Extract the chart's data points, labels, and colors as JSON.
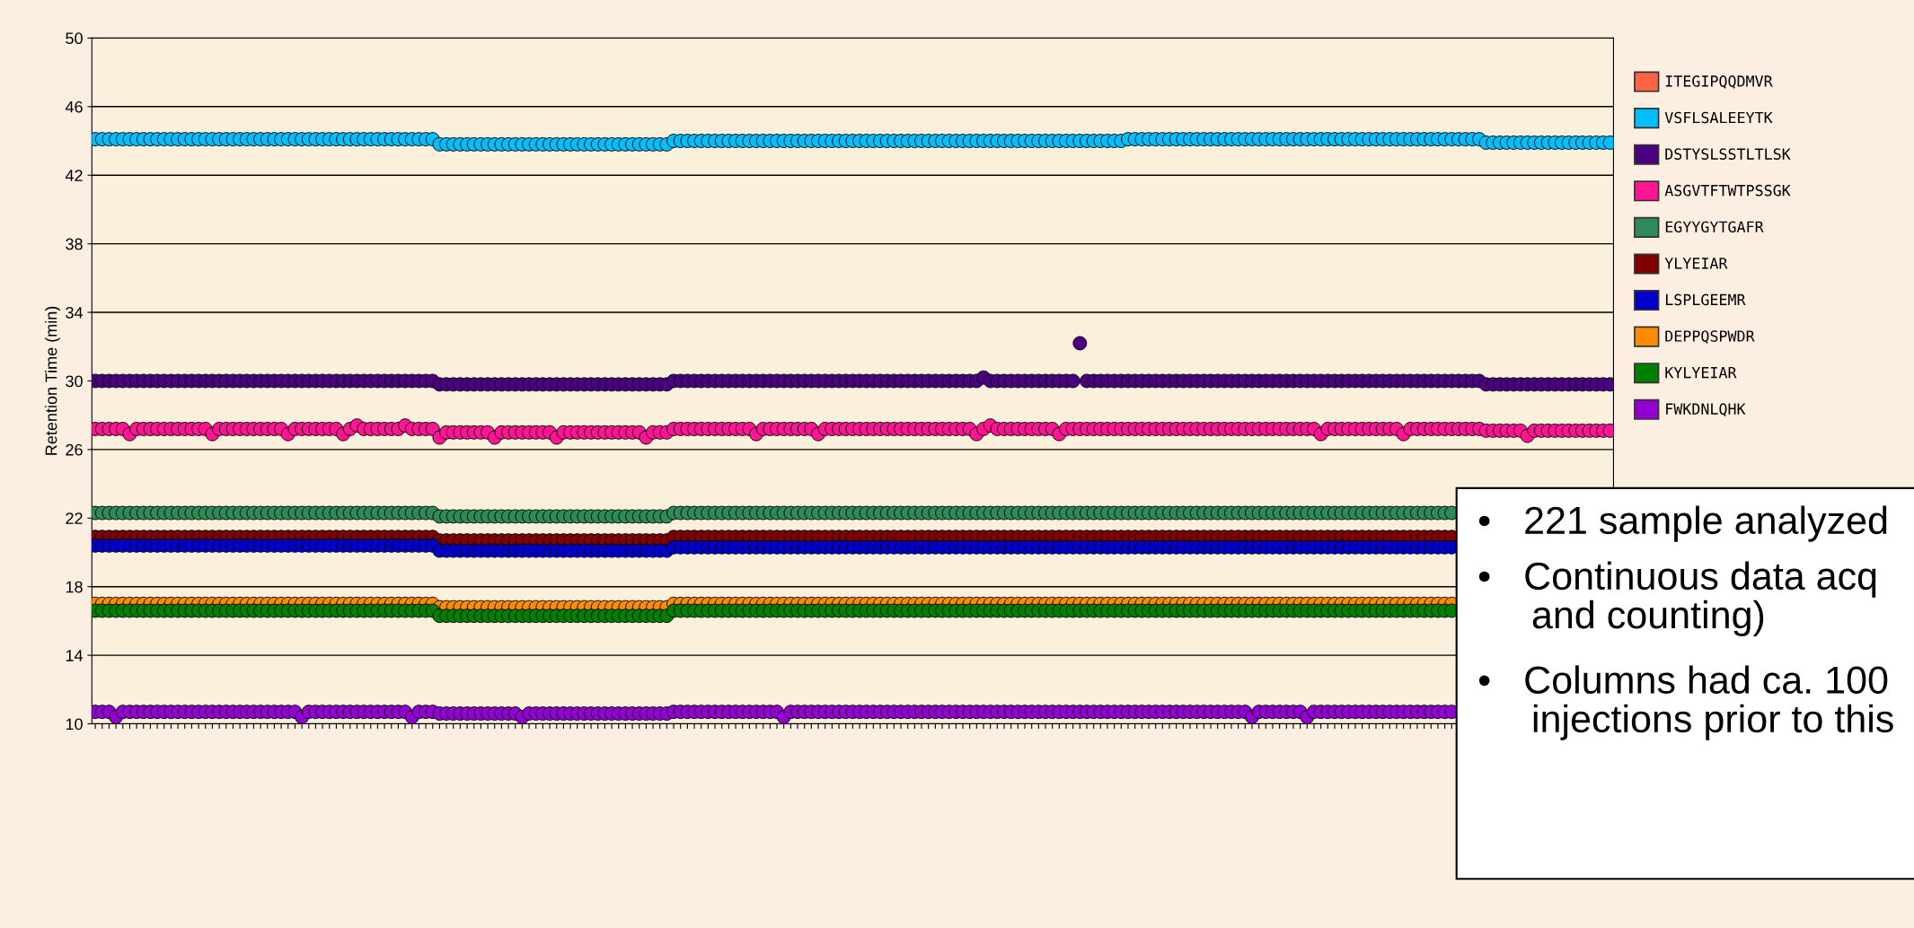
{
  "chart_data": {
    "type": "scatter",
    "ylabel": "Retention Time (min)",
    "ylim": [
      10,
      50
    ],
    "yticks": [
      10,
      14,
      18,
      22,
      26,
      30,
      34,
      38,
      42,
      46,
      50
    ],
    "grid": "y",
    "legend": "right",
    "marker": "circle",
    "categories": [
      null,
      null,
      null,
      null,
      null,
      null,
      null,
      null,
      null,
      null,
      null,
      null,
      null,
      null,
      null,
      null,
      null,
      null,
      null,
      null,
      null,
      null,
      null,
      null,
      null,
      null,
      null,
      null,
      null,
      null,
      null,
      null,
      null,
      null,
      null,
      null,
      null,
      null,
      null,
      null,
      null,
      null,
      null,
      null,
      null,
      null,
      null,
      null,
      null,
      null,
      null,
      null,
      null,
      null,
      null,
      null,
      null,
      null,
      null,
      null,
      null,
      null,
      null,
      null,
      null,
      null,
      null,
      null,
      null,
      null,
      null,
      null,
      null,
      null,
      null,
      null,
      null,
      null,
      null,
      null,
      null,
      null,
      null,
      null,
      null,
      null,
      null,
      null,
      null,
      null,
      null,
      null,
      null,
      null,
      null,
      null,
      null,
      null,
      null,
      null,
      null,
      null,
      null,
      null,
      null,
      null,
      null,
      null,
      null,
      null,
      null,
      null,
      null,
      null,
      null,
      null,
      null,
      null,
      null,
      null,
      null,
      null,
      null,
      null,
      null,
      null,
      null,
      null,
      null,
      null,
      null,
      null,
      null,
      null,
      null,
      null,
      null,
      null,
      null,
      null,
      null,
      null,
      null,
      null,
      null,
      null,
      null,
      null,
      null,
      null,
      null,
      null,
      null,
      null,
      null,
      null,
      null,
      null,
      null,
      null,
      null,
      null,
      null,
      null,
      null,
      null,
      null,
      null,
      null,
      null,
      null,
      null,
      null,
      null,
      null,
      null,
      null,
      null,
      null,
      null,
      null,
      null,
      null,
      null,
      null,
      null,
      null,
      null,
      null,
      null,
      null,
      null,
      null,
      null,
      null,
      null,
      null,
      null,
      null,
      null,
      null,
      null,
      null,
      null,
      null,
      null,
      null,
      null,
      null,
      null,
      null,
      null,
      null,
      null,
      null,
      null,
      null,
      null,
      null,
      null,
      null
    ],
    "series": [
      {
        "name": "ITEGIPQQDMVR",
        "color": "#ff6347",
        "values": [
          null,
          null,
          null,
          null,
          null,
          null,
          null,
          null,
          null,
          null,
          null,
          null,
          null,
          null,
          null,
          null,
          null,
          null,
          null,
          null,
          null,
          null,
          null,
          null,
          null,
          null,
          null,
          null,
          null,
          null,
          null,
          null,
          null,
          null,
          null,
          null,
          null,
          null,
          null,
          null,
          null,
          null,
          null,
          null,
          null,
          null,
          null,
          null,
          null,
          null,
          null,
          null,
          null,
          null,
          null,
          null,
          null,
          null,
          null,
          null,
          null,
          null,
          null,
          null,
          null,
          null,
          null,
          null,
          null,
          null,
          null,
          null,
          null,
          null,
          null,
          null,
          null,
          null,
          null,
          null,
          null,
          null,
          null,
          null,
          null,
          null,
          null,
          null,
          null,
          null,
          null,
          null,
          null,
          null,
          null,
          null,
          null,
          null,
          null,
          null,
          null,
          null,
          null,
          null,
          null,
          null,
          null,
          null,
          null,
          null,
          null,
          null,
          null,
          null,
          null,
          null,
          null,
          null,
          null,
          null,
          null,
          null,
          null,
          null,
          null,
          null,
          null,
          null,
          null,
          null,
          null,
          null,
          null,
          null,
          null,
          null,
          null,
          null,
          null,
          null,
          null,
          null,
          null,
          null,
          null,
          null,
          null,
          null,
          null,
          null,
          null,
          null,
          null,
          null,
          null,
          null,
          null,
          null,
          null,
          null,
          null,
          null,
          null,
          null,
          null,
          null,
          null,
          null,
          null,
          null,
          null,
          null,
          null,
          null,
          null,
          null,
          null,
          null,
          null,
          null,
          null,
          null,
          null,
          null,
          null,
          null,
          null,
          null,
          null,
          null,
          null,
          null,
          null,
          null,
          null,
          null,
          null,
          null,
          null,
          null,
          null,
          null,
          null,
          null,
          null,
          null,
          null,
          null,
          null,
          null,
          null,
          null,
          null,
          null,
          null,
          null,
          null,
          null,
          null,
          null,
          null
        ]
      },
      {
        "name": "VSFLSALEEYTK",
        "color": "#00bfff",
        "values": [
          44.1,
          44.1,
          44.1,
          44.1,
          44.1,
          44.1,
          44.1,
          44.1,
          44.1,
          44.1,
          44.1,
          44.1,
          44.1,
          44.1,
          44.1,
          44.1,
          44.1,
          44.1,
          44.1,
          44.1,
          44.1,
          44.1,
          44.1,
          44.1,
          44.1,
          44.1,
          44.1,
          44.1,
          44.1,
          44.1,
          44.1,
          44.1,
          44.1,
          44.1,
          44.1,
          44.1,
          44.1,
          44.1,
          44.1,
          44.1,
          44.1,
          44.1,
          44.1,
          44.1,
          44.1,
          44.1,
          44.1,
          44.1,
          44.1,
          44.1,
          43.8,
          43.8,
          43.8,
          43.8,
          43.8,
          43.8,
          43.8,
          43.8,
          43.8,
          43.8,
          43.8,
          43.8,
          43.8,
          43.8,
          43.8,
          43.8,
          43.8,
          43.8,
          43.8,
          43.8,
          43.8,
          43.8,
          43.8,
          43.8,
          43.8,
          43.8,
          43.8,
          43.8,
          43.8,
          43.8,
          43.8,
          43.8,
          43.8,
          43.8,
          44,
          44,
          44,
          44,
          44,
          44,
          44,
          44,
          44,
          44,
          44,
          44,
          44,
          44,
          44,
          44,
          44,
          44,
          44,
          44,
          44,
          44,
          44,
          44,
          44,
          44,
          44,
          44,
          44,
          44,
          44,
          44,
          44,
          44,
          44,
          44,
          44,
          44,
          44,
          44,
          44,
          44,
          44,
          44,
          44,
          44,
          44,
          44,
          44,
          44,
          44,
          44,
          44,
          44,
          44,
          44,
          44,
          44,
          44,
          44,
          44,
          44,
          44,
          44,
          44,
          44,
          44.1,
          44.1,
          44.1,
          44.1,
          44.1,
          44.1,
          44.1,
          44.1,
          44.1,
          44.1,
          44.1,
          44.1,
          44.1,
          44.1,
          44.1,
          44.1,
          44.1,
          44.1,
          44.1,
          44.1,
          44.1,
          44.1,
          44.1,
          44.1,
          44.1,
          44.1,
          44.1,
          44.1,
          44.1,
          44.1,
          44.1,
          44.1,
          44.1,
          44.1,
          44.1,
          44.1,
          44.1,
          44.1,
          44.1,
          44.1,
          44.1,
          44.1,
          44.1,
          44.1,
          44.1,
          44.1,
          44.1,
          44.1,
          44.1,
          44.1,
          44.1,
          44.1,
          43.9,
          43.9,
          43.9,
          43.9,
          43.9,
          43.9,
          43.9,
          43.9,
          43.9,
          43.9,
          43.9,
          43.9,
          43.9,
          43.9,
          43.9,
          43.9,
          43.9,
          43.9,
          43.9
        ]
      },
      {
        "name": "DSTYSLSSTLTLSK",
        "color": "#4b0082",
        "values": [
          30,
          30,
          30,
          30,
          30,
          30,
          30,
          30,
          30,
          30,
          30,
          30,
          30,
          30,
          30,
          30,
          30,
          30,
          30,
          30,
          30,
          30,
          30,
          30,
          30,
          30,
          30,
          30,
          30,
          30,
          30,
          30,
          30,
          30,
          30,
          30,
          30,
          30,
          30,
          30,
          30,
          30,
          30,
          30,
          30,
          30,
          30,
          30,
          30,
          30,
          29.8,
          29.8,
          29.8,
          29.8,
          29.8,
          29.8,
          29.8,
          29.8,
          29.8,
          29.8,
          29.8,
          29.8,
          29.8,
          29.8,
          29.8,
          29.8,
          29.8,
          29.8,
          29.8,
          29.8,
          29.8,
          29.8,
          29.8,
          29.8,
          29.8,
          29.8,
          29.8,
          29.8,
          29.8,
          29.8,
          29.8,
          29.8,
          29.8,
          29.8,
          30,
          30,
          30,
          30,
          30,
          30,
          30,
          30,
          30,
          30,
          30,
          30,
          30,
          30,
          30,
          30,
          30,
          30,
          30,
          30,
          30,
          30,
          30,
          30,
          30,
          30,
          30,
          30,
          30,
          30,
          30,
          30,
          30,
          30,
          30,
          30,
          30,
          30,
          30,
          30,
          30,
          30,
          30,
          30,
          30,
          30.2,
          30,
          30,
          30,
          30,
          30,
          30,
          30,
          30,
          30,
          30,
          30,
          30,
          30,
          32.2,
          30,
          30,
          30,
          30,
          30,
          30,
          30,
          30,
          30,
          30,
          30,
          30,
          30,
          30,
          30,
          30,
          30,
          30,
          30,
          30,
          30,
          30,
          30,
          30,
          30,
          30,
          30,
          30,
          30,
          30,
          30,
          30,
          30,
          30,
          30,
          30,
          30,
          30,
          30,
          30,
          30,
          30,
          30,
          30,
          30,
          30,
          30,
          30,
          30,
          30,
          30,
          30,
          30,
          30,
          30,
          30,
          30,
          30,
          29.8,
          29.8,
          29.8,
          29.8,
          29.8,
          29.8,
          29.8,
          29.8,
          29.8,
          29.8,
          29.8,
          29.8,
          29.8,
          29.8,
          29.8,
          29.8,
          29.8,
          29.8,
          29.8
        ]
      },
      {
        "name": "ASGVTFTWTPSSGK",
        "color": "#ff1493",
        "values": [
          27.2,
          27.2,
          27.2,
          27.2,
          27.2,
          26.9,
          27.2,
          27.2,
          27.2,
          27.2,
          27.2,
          27.2,
          27.2,
          27.2,
          27.2,
          27.2,
          27.2,
          26.9,
          27.2,
          27.2,
          27.2,
          27.2,
          27.2,
          27.2,
          27.2,
          27.2,
          27.2,
          27.2,
          26.9,
          27.2,
          27.2,
          27.2,
          27.2,
          27.2,
          27.2,
          27.2,
          26.9,
          27.2,
          27.4,
          27.2,
          27.2,
          27.2,
          27.2,
          27.2,
          27.2,
          27.4,
          27.2,
          27.2,
          27.2,
          27.2,
          26.7,
          27,
          27,
          27,
          27,
          27,
          27,
          27,
          26.7,
          27,
          27,
          27,
          27,
          27,
          27,
          27,
          27,
          26.7,
          27,
          27,
          27,
          27,
          27,
          27,
          27,
          27,
          27,
          27,
          27,
          27,
          26.7,
          27,
          27,
          27,
          27.2,
          27.2,
          27.2,
          27.2,
          27.2,
          27.2,
          27.2,
          27.2,
          27.2,
          27.2,
          27.2,
          27.2,
          26.9,
          27.2,
          27.2,
          27.2,
          27.2,
          27.2,
          27.2,
          27.2,
          27.2,
          26.9,
          27.2,
          27.2,
          27.2,
          27.2,
          27.2,
          27.2,
          27.2,
          27.2,
          27.2,
          27.2,
          27.2,
          27.2,
          27.2,
          27.2,
          27.2,
          27.2,
          27.2,
          27.2,
          27.2,
          27.2,
          27.2,
          27.2,
          26.9,
          27.2,
          27.4,
          27.2,
          27.2,
          27.2,
          27.2,
          27.2,
          27.2,
          27.2,
          27.2,
          27.2,
          26.9,
          27.2,
          27.2,
          27.2,
          27.2,
          27.2,
          27.2,
          27.2,
          27.2,
          27.2,
          27.2,
          27.2,
          27.2,
          27.2,
          27.2,
          27.2,
          27.2,
          27.2,
          27.2,
          27.2,
          27.2,
          27.2,
          27.2,
          27.2,
          27.2,
          27.2,
          27.2,
          27.2,
          27.2,
          27.2,
          27.2,
          27.2,
          27.2,
          27.2,
          27.2,
          27.2,
          27.2,
          27.2,
          26.9,
          27.2,
          27.2,
          27.2,
          27.2,
          27.2,
          27.2,
          27.2,
          27.2,
          27.2,
          27.2,
          27.2,
          26.9,
          27.2,
          27.2,
          27.2,
          27.2,
          27.2,
          27.2,
          27.2,
          27.2,
          27.2,
          27.2,
          27.2,
          27.1,
          27.1,
          27.1,
          27.1,
          27.1,
          27.1,
          26.8,
          27.1,
          27.1,
          27.1,
          27.1,
          27.1,
          27.1,
          27.1,
          27.1,
          27.1,
          27.1,
          27.1,
          27.1
        ]
      },
      {
        "name": "EGYYGYTGAFR",
        "color": "#2e8b57",
        "values": [
          22.3,
          22.3,
          22.3,
          22.3,
          22.3,
          22.3,
          22.3,
          22.3,
          22.3,
          22.3,
          22.3,
          22.3,
          22.3,
          22.3,
          22.3,
          22.3,
          22.3,
          22.3,
          22.3,
          22.3,
          22.3,
          22.3,
          22.3,
          22.3,
          22.3,
          22.3,
          22.3,
          22.3,
          22.3,
          22.3,
          22.3,
          22.3,
          22.3,
          22.3,
          22.3,
          22.3,
          22.3,
          22.3,
          22.3,
          22.3,
          22.3,
          22.3,
          22.3,
          22.3,
          22.3,
          22.3,
          22.3,
          22.3,
          22.3,
          22.3,
          22.1,
          22.1,
          22.1,
          22.1,
          22.1,
          22.1,
          22.1,
          22.1,
          22.1,
          22.1,
          22.1,
          22.1,
          22.1,
          22.1,
          22.1,
          22.1,
          22.1,
          22.1,
          22.1,
          22.1,
          22.1,
          22.1,
          22.1,
          22.1,
          22.1,
          22.1,
          22.1,
          22.1,
          22.1,
          22.1,
          22.1,
          22.1,
          22.1,
          22.1,
          22.3,
          22.3,
          22.3,
          22.3,
          22.3,
          22.3,
          22.3,
          22.3,
          22.3,
          22.3,
          22.3,
          22.3,
          22.3,
          22.3,
          22.3,
          22.3,
          22.3,
          22.3,
          22.3,
          22.3,
          22.3,
          22.3,
          22.3,
          22.3,
          22.3,
          22.3,
          22.3,
          22.3,
          22.3,
          22.3,
          22.3,
          22.3,
          22.3,
          22.3,
          22.3,
          22.3,
          22.3,
          22.3,
          22.3,
          22.3,
          22.3,
          22.3,
          22.3,
          22.3,
          22.3,
          22.3,
          22.3,
          22.3,
          22.3,
          22.3,
          22.3,
          22.3,
          22.3,
          22.3,
          22.3,
          22.3,
          22.3,
          22.3,
          22.3,
          22.3,
          22.3,
          22.3,
          22.3,
          22.3,
          22.3,
          22.3,
          22.3,
          22.3,
          22.3,
          22.3,
          22.3,
          22.3,
          22.3,
          22.3,
          22.3,
          22.3,
          22.3,
          22.3,
          22.3,
          22.3,
          22.3,
          22.3,
          22.3,
          22.3,
          22.3,
          22.3,
          22.3,
          22.3,
          22.3,
          22.3,
          22.3,
          22.3,
          22.3,
          22.3,
          22.3,
          22.3,
          22.3,
          22.3,
          22.3,
          22.3,
          22.3,
          22.3,
          22.3,
          22.3,
          22.3,
          22.3,
          22.3,
          22.3,
          22.3,
          22.3,
          22.3,
          22.3,
          22.3,
          22.3,
          null,
          null,
          null,
          null,
          null,
          null,
          null,
          null,
          null,
          null,
          null,
          null,
          null,
          null,
          null,
          null,
          null,
          null,
          null,
          null,
          null,
          null,
          null
        ]
      },
      {
        "name": "YLYEIAR",
        "color": "#800000",
        "values": [
          20.9,
          20.9,
          20.9,
          20.9,
          20.9,
          20.9,
          20.9,
          20.9,
          20.9,
          20.9,
          20.9,
          20.9,
          20.9,
          20.9,
          20.9,
          20.9,
          20.9,
          20.9,
          20.9,
          20.9,
          20.9,
          20.9,
          20.9,
          20.9,
          20.9,
          20.9,
          20.9,
          20.9,
          20.9,
          20.9,
          20.9,
          20.9,
          20.9,
          20.9,
          20.9,
          20.9,
          20.9,
          20.9,
          20.9,
          20.9,
          20.9,
          20.9,
          20.9,
          20.9,
          20.9,
          20.9,
          20.9,
          20.9,
          20.9,
          20.9,
          20.7,
          20.7,
          20.7,
          20.7,
          20.7,
          20.7,
          20.7,
          20.7,
          20.7,
          20.7,
          20.7,
          20.7,
          20.7,
          20.7,
          20.7,
          20.7,
          20.7,
          20.7,
          20.7,
          20.7,
          20.7,
          20.7,
          20.7,
          20.7,
          20.7,
          20.7,
          20.7,
          20.7,
          20.7,
          20.7,
          20.7,
          20.7,
          20.7,
          20.7,
          20.9,
          20.9,
          20.9,
          20.9,
          20.9,
          20.9,
          20.9,
          20.9,
          20.9,
          20.9,
          20.9,
          20.9,
          20.9,
          20.9,
          20.9,
          20.9,
          20.9,
          20.9,
          20.9,
          20.9,
          20.9,
          20.9,
          20.9,
          20.9,
          20.9,
          20.9,
          20.9,
          20.9,
          20.9,
          20.9,
          20.9,
          20.9,
          20.9,
          20.9,
          20.9,
          20.9,
          20.9,
          20.9,
          20.9,
          20.9,
          20.9,
          20.9,
          20.9,
          20.9,
          20.9,
          20.9,
          20.9,
          20.9,
          20.9,
          20.9,
          20.9,
          20.9,
          20.9,
          20.9,
          20.9,
          20.9,
          20.9,
          20.9,
          20.9,
          20.9,
          20.9,
          20.9,
          20.9,
          20.9,
          20.9,
          20.9,
          20.9,
          20.9,
          20.9,
          20.9,
          20.9,
          20.9,
          20.9,
          20.9,
          20.9,
          20.9,
          20.9,
          20.9,
          20.9,
          20.9,
          20.9,
          20.9,
          20.9,
          20.9,
          20.9,
          20.9,
          20.9,
          20.9,
          20.9,
          20.9,
          20.9,
          20.9,
          20.9,
          20.9,
          20.9,
          20.9,
          20.9,
          20.9,
          20.9,
          20.9,
          20.9,
          20.9,
          20.9,
          20.9,
          20.9,
          20.9,
          20.9,
          20.9,
          20.9,
          20.9,
          20.9,
          20.9,
          20.9,
          20.9,
          null,
          null,
          null,
          null,
          null,
          null,
          null,
          null,
          null,
          null,
          null,
          null,
          null,
          null,
          null,
          null,
          null,
          null,
          null,
          null,
          null,
          null,
          null
        ]
      },
      {
        "name": "LSPLGEEMR",
        "color": "#0000cd",
        "values": [
          20.4,
          20.4,
          20.4,
          20.4,
          20.4,
          20.4,
          20.4,
          20.4,
          20.4,
          20.4,
          20.4,
          20.4,
          20.4,
          20.4,
          20.4,
          20.4,
          20.4,
          20.4,
          20.4,
          20.4,
          20.4,
          20.4,
          20.4,
          20.4,
          20.4,
          20.4,
          20.4,
          20.4,
          20.4,
          20.4,
          20.4,
          20.4,
          20.4,
          20.4,
          20.4,
          20.4,
          20.4,
          20.4,
          20.4,
          20.4,
          20.4,
          20.4,
          20.4,
          20.4,
          20.4,
          20.4,
          20.4,
          20.4,
          20.4,
          20.4,
          20.1,
          20.1,
          20.1,
          20.1,
          20.1,
          20.1,
          20.1,
          20.1,
          20.1,
          20.1,
          20.1,
          20.1,
          20.1,
          20.1,
          20.1,
          20.1,
          20.1,
          20.1,
          20.1,
          20.1,
          20.1,
          20.1,
          20.1,
          20.1,
          20.1,
          20.1,
          20.1,
          20.1,
          20.1,
          20.1,
          20.1,
          20.1,
          20.1,
          20.1,
          20.3,
          20.3,
          20.3,
          20.3,
          20.3,
          20.3,
          20.3,
          20.3,
          20.3,
          20.3,
          20.3,
          20.3,
          20.3,
          20.3,
          20.3,
          20.3,
          20.3,
          20.3,
          20.3,
          20.3,
          20.3,
          20.3,
          20.3,
          20.3,
          20.3,
          20.3,
          20.3,
          20.3,
          20.3,
          20.3,
          20.3,
          20.3,
          20.3,
          20.3,
          20.3,
          20.3,
          20.3,
          20.3,
          20.3,
          20.3,
          20.3,
          20.3,
          20.3,
          20.3,
          20.3,
          20.3,
          20.3,
          20.3,
          20.3,
          20.3,
          20.3,
          20.3,
          20.3,
          20.3,
          20.3,
          20.3,
          20.3,
          20.3,
          20.3,
          20.3,
          20.3,
          20.3,
          20.3,
          20.3,
          20.3,
          20.3,
          20.3,
          20.3,
          20.3,
          20.3,
          20.3,
          20.3,
          20.3,
          20.3,
          20.3,
          20.3,
          20.3,
          20.3,
          20.3,
          20.3,
          20.3,
          20.3,
          20.3,
          20.3,
          20.3,
          20.3,
          20.3,
          20.3,
          20.3,
          20.3,
          20.3,
          20.3,
          20.3,
          20.3,
          20.3,
          20.3,
          20.3,
          20.3,
          20.3,
          20.3,
          20.3,
          20.3,
          20.3,
          20.3,
          20.3,
          20.3,
          20.3,
          20.3,
          20.3,
          20.3,
          20.3,
          20.3,
          20.3,
          20.3,
          null,
          null,
          null,
          null,
          null,
          null,
          null,
          null,
          null,
          null,
          null,
          null,
          null,
          null,
          null,
          null,
          null,
          null,
          null,
          null,
          null,
          null,
          null
        ]
      },
      {
        "name": "DEPPQSPWDR",
        "color": "#ff8c00",
        "values": [
          17,
          17,
          17,
          17,
          17,
          17,
          17,
          17,
          17,
          17,
          17,
          17,
          17,
          17,
          17,
          17,
          17,
          17,
          17,
          17,
          17,
          17,
          17,
          17,
          17,
          17,
          17,
          17,
          17,
          17,
          17,
          17,
          17,
          17,
          17,
          17,
          17,
          17,
          17,
          17,
          17,
          17,
          17,
          17,
          17,
          17,
          17,
          17,
          17,
          17,
          16.8,
          16.8,
          16.8,
          16.8,
          16.8,
          16.8,
          16.8,
          16.8,
          16.8,
          16.8,
          16.8,
          16.8,
          16.8,
          16.8,
          16.8,
          16.8,
          16.8,
          16.8,
          16.8,
          16.8,
          16.8,
          16.8,
          16.8,
          16.8,
          16.8,
          16.8,
          16.8,
          16.8,
          16.8,
          16.8,
          16.8,
          16.8,
          16.8,
          16.8,
          17,
          17,
          17,
          17,
          17,
          17,
          17,
          17,
          17,
          17,
          17,
          17,
          17,
          17,
          17,
          17,
          17,
          17,
          17,
          17,
          17,
          17,
          17,
          17,
          17,
          17,
          17,
          17,
          17,
          17,
          17,
          17,
          17,
          17,
          17,
          17,
          17,
          17,
          17,
          17,
          17,
          17,
          17,
          17,
          17,
          17,
          17,
          17,
          17,
          17,
          17,
          17,
          17,
          17,
          17,
          17,
          17,
          17,
          17,
          17,
          17,
          17,
          17,
          17,
          17,
          17,
          17,
          17,
          17,
          17,
          17,
          17,
          17,
          17,
          17,
          17,
          17,
          17,
          17,
          17,
          17,
          17,
          17,
          17,
          17,
          17,
          17,
          17,
          17,
          17,
          17,
          17,
          17,
          17,
          17,
          17,
          17,
          17,
          17,
          17,
          17,
          17,
          17,
          17,
          17,
          17,
          17,
          17,
          17,
          17,
          17,
          17,
          17,
          17,
          null,
          null,
          null,
          null,
          null,
          null,
          null,
          null,
          null,
          null,
          null,
          null,
          null,
          null,
          null,
          null,
          null,
          null,
          null,
          null,
          null,
          null,
          null
        ]
      },
      {
        "name": "KYLYEIAR",
        "color": "#008000",
        "values": [
          16.6,
          16.6,
          16.6,
          16.6,
          16.6,
          16.6,
          16.6,
          16.6,
          16.6,
          16.6,
          16.6,
          16.6,
          16.6,
          16.6,
          16.6,
          16.6,
          16.6,
          16.6,
          16.6,
          16.6,
          16.6,
          16.6,
          16.6,
          16.6,
          16.6,
          16.6,
          16.6,
          16.6,
          16.6,
          16.6,
          16.6,
          16.6,
          16.6,
          16.6,
          16.6,
          16.6,
          16.6,
          16.6,
          16.6,
          16.6,
          16.6,
          16.6,
          16.6,
          16.6,
          16.6,
          16.6,
          16.6,
          16.6,
          16.6,
          16.6,
          16.3,
          16.3,
          16.3,
          16.3,
          16.3,
          16.3,
          16.3,
          16.3,
          16.3,
          16.3,
          16.3,
          16.3,
          16.3,
          16.3,
          16.3,
          16.3,
          16.3,
          16.3,
          16.3,
          16.3,
          16.3,
          16.3,
          16.3,
          16.3,
          16.3,
          16.3,
          16.3,
          16.3,
          16.3,
          16.3,
          16.3,
          16.3,
          16.3,
          16.3,
          16.6,
          16.6,
          16.6,
          16.6,
          16.6,
          16.6,
          16.6,
          16.6,
          16.6,
          16.6,
          16.6,
          16.6,
          16.6,
          16.6,
          16.6,
          16.6,
          16.6,
          16.6,
          16.6,
          16.6,
          16.6,
          16.6,
          16.6,
          16.6,
          16.6,
          16.6,
          16.6,
          16.6,
          16.6,
          16.6,
          16.6,
          16.6,
          16.6,
          16.6,
          16.6,
          16.6,
          16.6,
          16.6,
          16.6,
          16.6,
          16.6,
          16.6,
          16.6,
          16.6,
          16.6,
          16.6,
          16.6,
          16.6,
          16.6,
          16.6,
          16.6,
          16.6,
          16.6,
          16.6,
          16.6,
          16.6,
          16.6,
          16.6,
          16.6,
          16.6,
          16.6,
          16.6,
          16.6,
          16.6,
          16.6,
          16.6,
          16.6,
          16.6,
          16.6,
          16.6,
          16.6,
          16.6,
          16.6,
          16.6,
          16.6,
          16.6,
          16.6,
          16.6,
          16.6,
          16.6,
          16.6,
          16.6,
          16.6,
          16.6,
          16.6,
          16.6,
          16.6,
          16.6,
          16.6,
          16.6,
          16.6,
          16.6,
          16.6,
          16.6,
          16.6,
          16.6,
          16.6,
          16.6,
          16.6,
          16.6,
          16.6,
          16.6,
          16.6,
          16.6,
          16.6,
          16.6,
          16.6,
          16.6,
          16.6,
          16.6,
          16.6,
          16.6,
          16.6,
          16.6,
          null,
          null,
          null,
          null,
          null,
          null,
          null,
          null,
          null,
          null,
          null,
          null,
          null,
          null,
          null,
          null,
          null,
          null,
          null,
          null,
          null,
          null,
          null
        ]
      },
      {
        "name": "FWKDNLQHK",
        "color": "#9400d3",
        "values": [
          10.7,
          10.7,
          10.7,
          10.4,
          10.7,
          10.7,
          10.7,
          10.7,
          10.7,
          10.7,
          10.7,
          10.7,
          10.7,
          10.7,
          10.7,
          10.7,
          10.7,
          10.7,
          10.7,
          10.7,
          10.7,
          10.7,
          10.7,
          10.7,
          10.7,
          10.7,
          10.7,
          10.7,
          10.7,
          10.7,
          10.4,
          10.7,
          10.7,
          10.7,
          10.7,
          10.7,
          10.7,
          10.7,
          10.7,
          10.7,
          10.7,
          10.7,
          10.7,
          10.7,
          10.7,
          10.7,
          10.4,
          10.7,
          10.7,
          10.7,
          10.6,
          10.6,
          10.6,
          10.6,
          10.6,
          10.6,
          10.6,
          10.6,
          10.6,
          10.6,
          10.6,
          10.6,
          10.4,
          10.6,
          10.6,
          10.6,
          10.6,
          10.6,
          10.6,
          10.6,
          10.6,
          10.6,
          10.6,
          10.6,
          10.6,
          10.6,
          10.6,
          10.6,
          10.6,
          10.6,
          10.6,
          10.6,
          10.6,
          10.6,
          10.7,
          10.7,
          10.7,
          10.7,
          10.7,
          10.7,
          10.7,
          10.7,
          10.7,
          10.7,
          10.7,
          10.7,
          10.7,
          10.7,
          10.7,
          10.7,
          10.4,
          10.7,
          10.7,
          10.7,
          10.7,
          10.7,
          10.7,
          10.7,
          10.7,
          10.7,
          10.7,
          10.7,
          10.7,
          10.7,
          10.7,
          10.7,
          10.7,
          10.7,
          10.7,
          10.7,
          10.7,
          10.7,
          10.7,
          10.7,
          10.7,
          10.7,
          10.7,
          10.7,
          10.7,
          10.7,
          10.7,
          10.7,
          10.7,
          10.7,
          10.7,
          10.7,
          10.7,
          10.7,
          10.7,
          10.7,
          10.7,
          10.7,
          10.7,
          10.7,
          10.7,
          10.7,
          10.7,
          10.7,
          10.7,
          10.7,
          10.7,
          10.7,
          10.7,
          10.7,
          10.7,
          10.7,
          10.7,
          10.7,
          10.7,
          10.7,
          10.7,
          10.7,
          10.7,
          10.7,
          10.7,
          10.7,
          10.7,
          10.7,
          10.4,
          10.7,
          10.7,
          10.7,
          10.7,
          10.7,
          10.7,
          10.7,
          10.4,
          10.7,
          10.7,
          10.7,
          10.7,
          10.7,
          10.7,
          10.7,
          10.7,
          10.7,
          10.7,
          10.7,
          10.7,
          10.7,
          10.7,
          10.7,
          10.7,
          10.7,
          10.7,
          10.7,
          10.7,
          10.7,
          null,
          null,
          null,
          null,
          null,
          null,
          null,
          null,
          null,
          null,
          null,
          null,
          null,
          null,
          null,
          null,
          null,
          null,
          null,
          null,
          null,
          null,
          null
        ]
      }
    ],
    "annotations": [
      "•   221 sample analyzed",
      "•   Continuous data acq\n     and counting)",
      "•   Columns had ca. 100\n     injections prior to this"
    ]
  }
}
